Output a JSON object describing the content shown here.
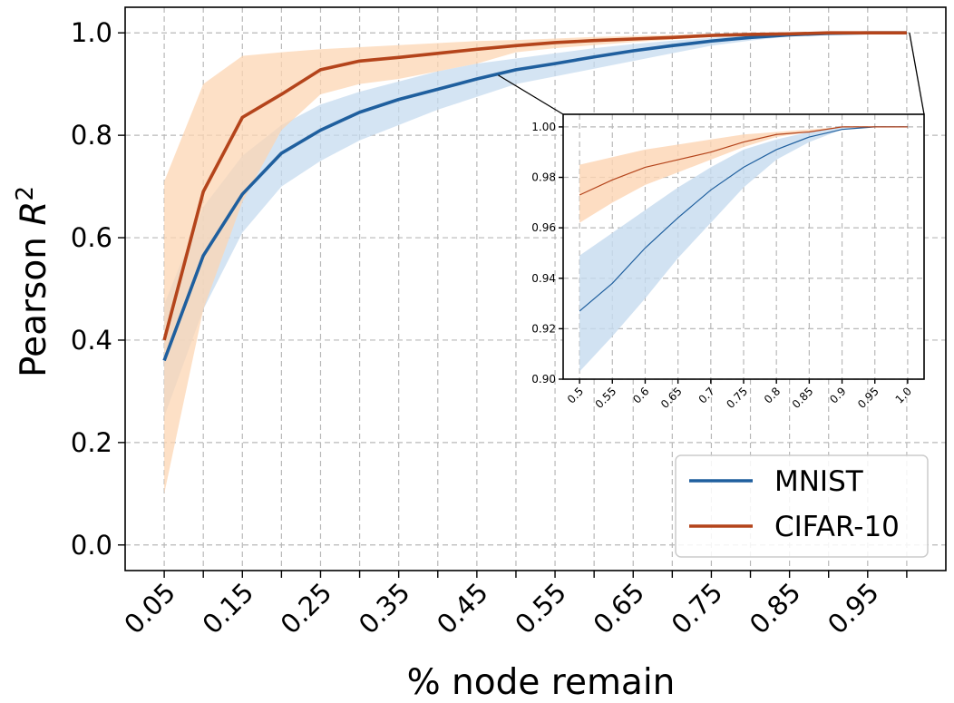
{
  "chart_data": [
    {
      "type": "line",
      "title": "",
      "xlabel": "% node remain",
      "ylabel": "Pearson $R^2$",
      "ylabel_text": "Pearson R",
      "ylabel_sup": "2",
      "x": [
        0.05,
        0.1,
        0.15,
        0.2,
        0.25,
        0.3,
        0.35,
        0.4,
        0.45,
        0.5,
        0.55,
        0.6,
        0.65,
        0.7,
        0.75,
        0.8,
        0.85,
        0.9,
        0.95,
        1.0
      ],
      "xticks": [
        0.05,
        0.15,
        0.25,
        0.35,
        0.45,
        0.55,
        0.65,
        0.75,
        0.85,
        0.95
      ],
      "xtick_labels": [
        "0.05",
        "0.15",
        "0.25",
        "0.35",
        "0.45",
        "0.55",
        "0.65",
        "0.75",
        "0.85",
        "0.95"
      ],
      "xlim": [
        0.0,
        1.05
      ],
      "yticks": [
        0.0,
        0.2,
        0.4,
        0.6,
        0.8,
        1.0
      ],
      "ytick_labels": [
        "0.0",
        "0.2",
        "0.4",
        "0.6",
        "0.8",
        "1.0"
      ],
      "ylim": [
        -0.05,
        1.05
      ],
      "grid": true,
      "legend_position": "bottom-right",
      "series": [
        {
          "name": "MNIST",
          "color": "#1f5f9e",
          "band_color": "#c6dbef",
          "values": [
            0.36,
            0.565,
            0.685,
            0.765,
            0.81,
            0.845,
            0.87,
            0.89,
            0.91,
            0.928,
            0.94,
            0.953,
            0.965,
            0.975,
            0.984,
            0.991,
            0.996,
            0.999,
            1.0,
            1.0
          ],
          "lower": [
            0.25,
            0.46,
            0.61,
            0.7,
            0.75,
            0.79,
            0.82,
            0.85,
            0.875,
            0.9,
            0.915,
            0.93,
            0.945,
            0.96,
            0.975,
            0.985,
            0.993,
            0.998,
            1.0,
            1.0
          ],
          "upper": [
            0.47,
            0.66,
            0.76,
            0.82,
            0.86,
            0.885,
            0.905,
            0.925,
            0.94,
            0.95,
            0.96,
            0.97,
            0.978,
            0.985,
            0.99,
            0.995,
            0.998,
            1.0,
            1.0,
            1.0
          ]
        },
        {
          "name": "CIFAR-10",
          "color": "#b4441b",
          "band_color": "#fcd5b3",
          "values": [
            0.4,
            0.69,
            0.835,
            0.88,
            0.928,
            0.945,
            0.952,
            0.96,
            0.968,
            0.975,
            0.981,
            0.985,
            0.988,
            0.991,
            0.995,
            0.997,
            0.998,
            1.0,
            1.0,
            1.0
          ],
          "lower": [
            0.1,
            0.46,
            0.67,
            0.81,
            0.88,
            0.9,
            0.91,
            0.925,
            0.94,
            0.962,
            0.97,
            0.976,
            0.982,
            0.987,
            0.992,
            0.996,
            0.998,
            1.0,
            1.0,
            1.0
          ],
          "upper": [
            0.71,
            0.9,
            0.955,
            0.962,
            0.968,
            0.972,
            0.976,
            0.98,
            0.984,
            0.986,
            0.989,
            0.992,
            0.994,
            0.996,
            0.998,
            0.999,
            1.0,
            1.0,
            1.0,
            1.0
          ]
        }
      ]
    },
    {
      "type": "line",
      "title": "",
      "role": "zoom inset",
      "x": [
        0.5,
        0.55,
        0.6,
        0.65,
        0.7,
        0.75,
        0.8,
        0.85,
        0.9,
        0.95,
        1.0
      ],
      "xticks": [
        0.5,
        0.55,
        0.6,
        0.65,
        0.7,
        0.75,
        0.8,
        0.85,
        0.9,
        0.95,
        1.0
      ],
      "xtick_labels": [
        "0.5",
        "0.55",
        "0.6",
        "0.65",
        "0.7",
        "0.75",
        "0.8",
        "0.85",
        "0.9",
        "0.95",
        "1.0"
      ],
      "xlim": [
        0.475,
        1.025
      ],
      "yticks": [
        0.9,
        0.92,
        0.94,
        0.96,
        0.98,
        1.0
      ],
      "ytick_labels": [
        "0.90",
        "0.92",
        "0.94",
        "0.96",
        "0.98",
        "1.00"
      ],
      "ylim": [
        0.9,
        1.005
      ],
      "grid": true,
      "series": [
        {
          "name": "MNIST",
          "color": "#1f5f9e",
          "band_color": "#c6dbef",
          "values": [
            0.927,
            0.938,
            0.952,
            0.964,
            0.975,
            0.984,
            0.991,
            0.996,
            0.999,
            1.0,
            1.0
          ],
          "lower": [
            0.903,
            0.917,
            0.932,
            0.948,
            0.962,
            0.976,
            0.987,
            0.994,
            0.999,
            1.0,
            1.0
          ],
          "upper": [
            0.949,
            0.958,
            0.967,
            0.976,
            0.984,
            0.991,
            0.995,
            0.998,
            1.0,
            1.0,
            1.0
          ]
        },
        {
          "name": "CIFAR-10",
          "color": "#b4441b",
          "band_color": "#fcd5b3",
          "values": [
            0.973,
            0.979,
            0.984,
            0.987,
            0.99,
            0.994,
            0.997,
            0.998,
            1.0,
            1.0,
            1.0
          ],
          "lower": [
            0.962,
            0.97,
            0.977,
            0.982,
            0.987,
            0.992,
            0.996,
            0.998,
            1.0,
            1.0,
            1.0
          ],
          "upper": [
            0.985,
            0.988,
            0.991,
            0.993,
            0.995,
            0.997,
            0.998,
            0.999,
            1.0,
            1.0,
            1.0
          ]
        }
      ]
    }
  ]
}
